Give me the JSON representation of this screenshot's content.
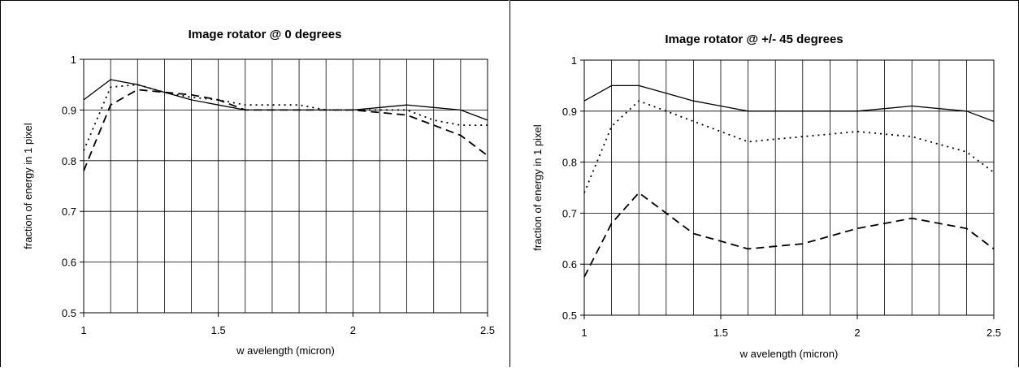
{
  "chart_data": [
    {
      "type": "line",
      "title": "Image rotator @ 0 degrees",
      "xlabel": "w avelength (micron)",
      "ylabel": "fraction of energy in 1 pixel",
      "xlim": [
        1,
        2.5
      ],
      "ylim": [
        0.5,
        1
      ],
      "x_ticks": [
        "1",
        "1.5",
        "2",
        "2.5"
      ],
      "y_ticks": [
        "0.5",
        "0.6",
        "0.7",
        "0.8",
        "0.9",
        "1"
      ],
      "grid": "vertical every 0.1, horizontal every 0.1",
      "legend": "none",
      "series": [
        {
          "style": "solid",
          "x": [
            1.0,
            1.1,
            1.2,
            1.3,
            1.4,
            1.5,
            1.6,
            1.7,
            1.8,
            1.9,
            2.0,
            2.1,
            2.2,
            2.3,
            2.4,
            2.5
          ],
          "y": [
            0.92,
            0.96,
            0.95,
            0.935,
            0.92,
            0.91,
            0.9,
            0.9,
            0.9,
            0.9,
            0.9,
            0.905,
            0.91,
            0.905,
            0.9,
            0.88
          ]
        },
        {
          "style": "dotted",
          "x": [
            1.0,
            1.1,
            1.2,
            1.3,
            1.4,
            1.5,
            1.6,
            1.7,
            1.8,
            1.9,
            2.0,
            2.1,
            2.2,
            2.3,
            2.4,
            2.5
          ],
          "y": [
            0.82,
            0.945,
            0.95,
            0.935,
            0.925,
            0.92,
            0.91,
            0.91,
            0.91,
            0.9,
            0.9,
            0.9,
            0.9,
            0.88,
            0.87,
            0.87
          ]
        },
        {
          "style": "dashed",
          "x": [
            1.0,
            1.1,
            1.2,
            1.3,
            1.4,
            1.5,
            1.6,
            1.7,
            1.8,
            1.9,
            2.0,
            2.1,
            2.2,
            2.3,
            2.4,
            2.5
          ],
          "y": [
            0.78,
            0.91,
            0.94,
            0.935,
            0.93,
            0.92,
            0.9,
            0.9,
            0.9,
            0.9,
            0.9,
            0.895,
            0.89,
            0.87,
            0.85,
            0.81
          ]
        }
      ]
    },
    {
      "type": "line",
      "title": "Image rotator @ +/- 45 degrees",
      "xlabel": "w avelength (micron)",
      "ylabel": "fraction of energy in 1 pixel",
      "xlim": [
        1,
        2.5
      ],
      "ylim": [
        0.5,
        1
      ],
      "x_ticks": [
        "1",
        "1.5",
        "2",
        "2.5"
      ],
      "y_ticks": [
        "0.5",
        "0.6",
        "0.7",
        "0.8",
        "0.9",
        "1"
      ],
      "grid": "vertical every 0.1, horizontal every 0.1",
      "legend": "none",
      "series": [
        {
          "style": "solid",
          "x": [
            1.0,
            1.1,
            1.2,
            1.3,
            1.4,
            1.5,
            1.6,
            1.7,
            1.8,
            1.9,
            2.0,
            2.1,
            2.2,
            2.3,
            2.4,
            2.5
          ],
          "y": [
            0.92,
            0.95,
            0.95,
            0.935,
            0.92,
            0.91,
            0.9,
            0.9,
            0.9,
            0.9,
            0.9,
            0.905,
            0.91,
            0.905,
            0.9,
            0.88
          ]
        },
        {
          "style": "dotted",
          "x": [
            1.0,
            1.1,
            1.2,
            1.3,
            1.4,
            1.5,
            1.6,
            1.7,
            1.8,
            1.9,
            2.0,
            2.1,
            2.2,
            2.3,
            2.4,
            2.5
          ],
          "y": [
            0.74,
            0.87,
            0.92,
            0.9,
            0.88,
            0.86,
            0.84,
            0.845,
            0.85,
            0.855,
            0.86,
            0.855,
            0.85,
            0.835,
            0.82,
            0.78
          ]
        },
        {
          "style": "dashed",
          "x": [
            1.0,
            1.1,
            1.2,
            1.3,
            1.4,
            1.5,
            1.6,
            1.7,
            1.8,
            1.9,
            2.0,
            2.1,
            2.2,
            2.3,
            2.4,
            2.5
          ],
          "y": [
            0.575,
            0.68,
            0.74,
            0.7,
            0.66,
            0.645,
            0.63,
            0.635,
            0.64,
            0.655,
            0.67,
            0.68,
            0.69,
            0.68,
            0.67,
            0.63
          ]
        }
      ]
    }
  ]
}
